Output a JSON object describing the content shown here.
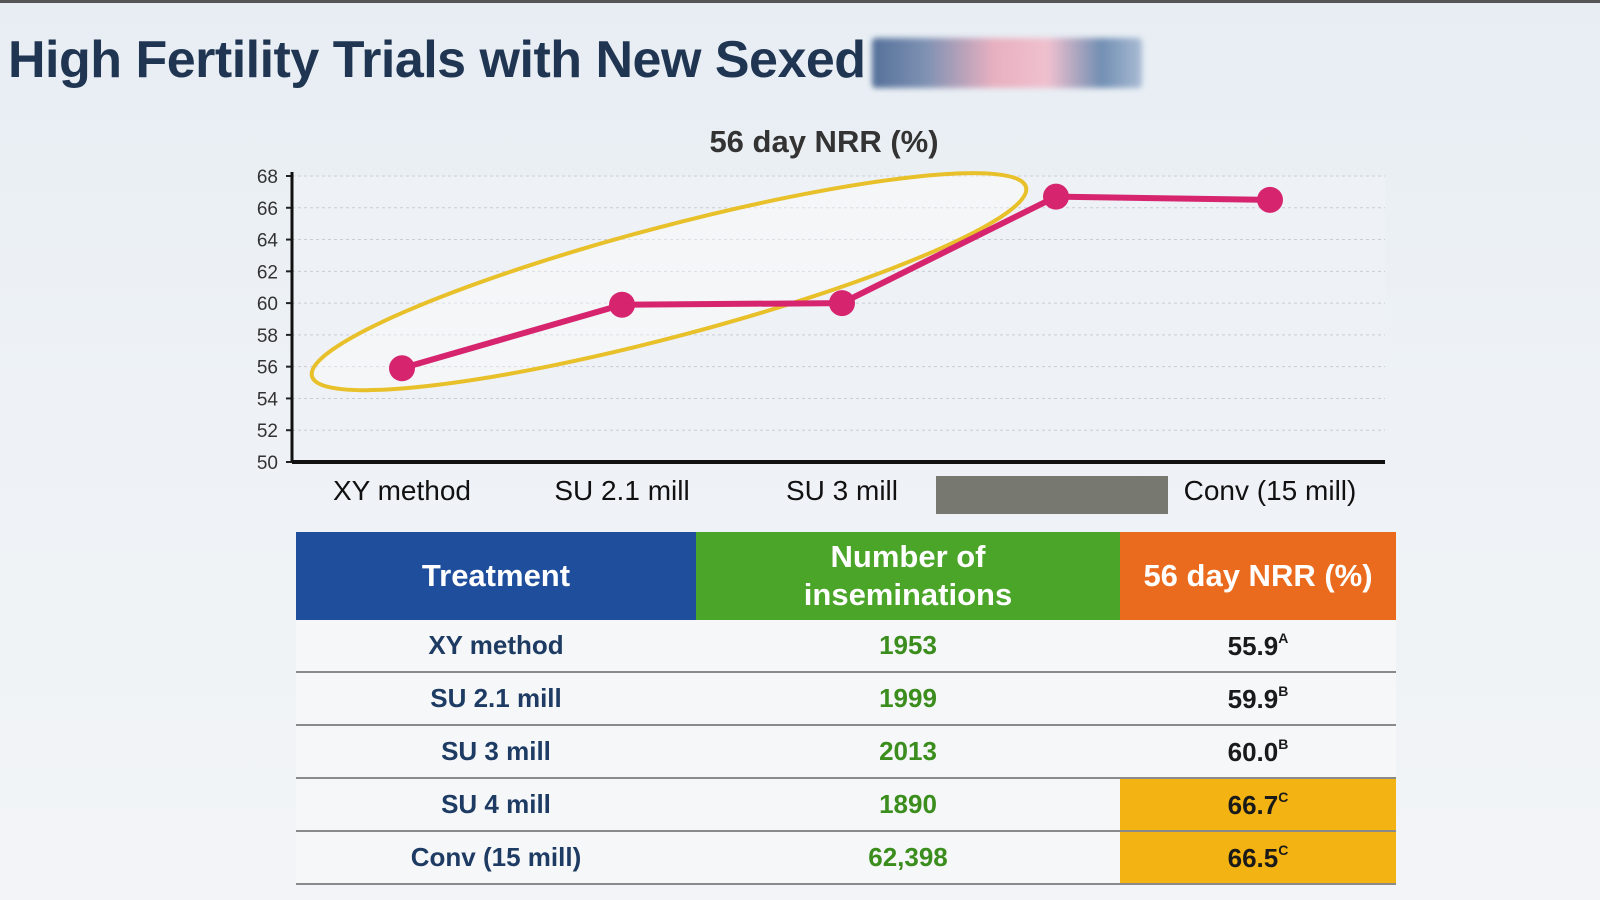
{
  "header": {
    "title": "High Fertility Trials with New",
    "title_brand": "Sexed"
  },
  "chart_data": {
    "type": "line",
    "title": "56 day NRR (%)",
    "categories": [
      "XY method",
      "SU 2.1 mill",
      "SU 3 mill",
      "",
      "Conv (15 mill)"
    ],
    "values": [
      55.9,
      59.9,
      60.0,
      66.7,
      66.5
    ],
    "ylim": [
      50,
      68
    ],
    "yticks": [
      50,
      52,
      54,
      56,
      58,
      60,
      62,
      64,
      66,
      68
    ],
    "grid": true,
    "line_color": "#d6246e",
    "highlight_color": "#e8c02a",
    "xlabel": "",
    "ylabel": ""
  },
  "table": {
    "headers": [
      "Treatment",
      "Number of inseminations",
      "56 day NRR (%)"
    ],
    "header_colors": [
      "#1f4e9c",
      "#4aa528",
      "#ea6b1d"
    ],
    "highlight_color": "#f3b312",
    "rows": [
      {
        "treatment": "XY method",
        "inseminations": "1953",
        "nrr": "55.9",
        "sup": "A",
        "highlight": false
      },
      {
        "treatment": "SU 2.1 mill",
        "inseminations": "1999",
        "nrr": "59.9",
        "sup": "B",
        "highlight": false
      },
      {
        "treatment": "SU 3 mill",
        "inseminations": "2013",
        "nrr": "60.0",
        "sup": "B",
        "highlight": false
      },
      {
        "treatment": "SU 4 mill",
        "inseminations": "1890",
        "nrr": "66.7",
        "sup": "C",
        "highlight": true
      },
      {
        "treatment": "Conv (15 mill)",
        "inseminations": "62,398",
        "nrr": "66.5",
        "sup": "C",
        "highlight": true
      }
    ]
  }
}
